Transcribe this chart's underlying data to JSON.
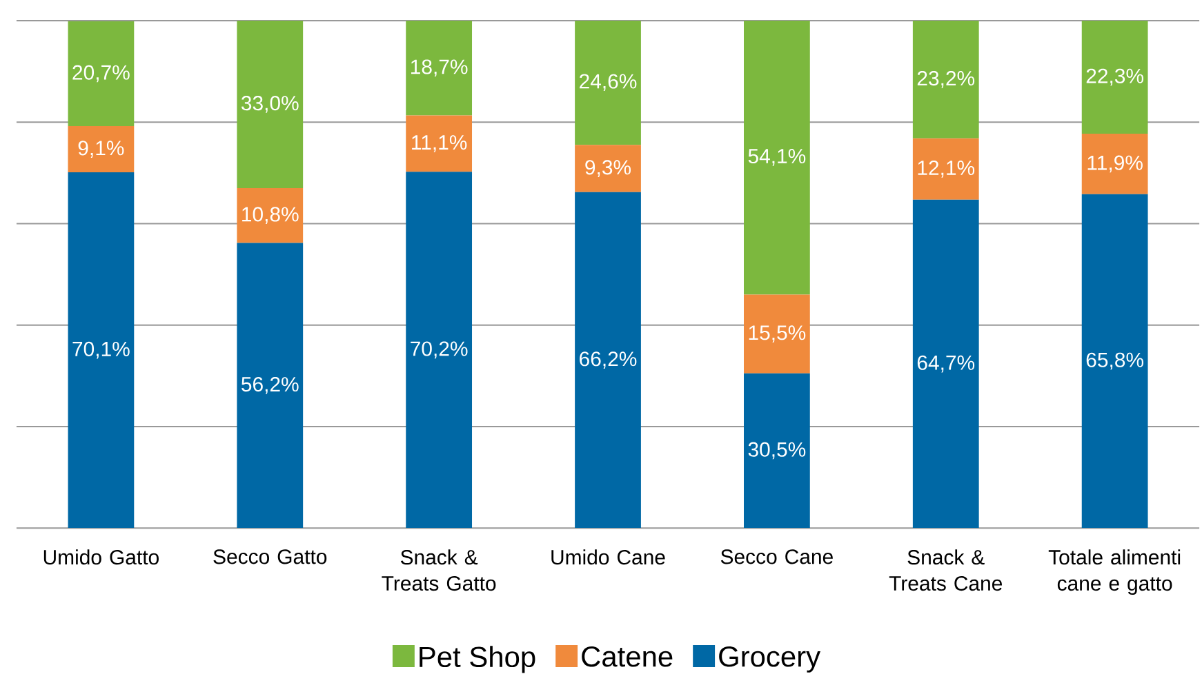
{
  "chart_data": {
    "type": "bar",
    "stacked": true,
    "categories": [
      "Umido Gatto",
      "Secco Gatto",
      "Snack & Treats Gatto",
      "Umido Cane",
      "Secco Cane",
      "Snack & Treats Cane",
      "Totale alimenti cane e gatto"
    ],
    "series": [
      {
        "name": "Grocery",
        "color": "#0068a5",
        "values": [
          70.1,
          56.2,
          70.2,
          66.2,
          30.5,
          64.7,
          65.8
        ],
        "value_labels": [
          "70,1%",
          "56,2%",
          "70,2%",
          "66,2%",
          "30,5%",
          "64,7%",
          "65,8%"
        ]
      },
      {
        "name": "Catene",
        "color": "#f08a3c",
        "values": [
          9.1,
          10.8,
          11.1,
          9.3,
          15.5,
          12.1,
          11.9
        ],
        "value_labels": [
          "9,1%",
          "10,8%",
          "11,1%",
          "9,3%",
          "15,5%",
          "12,1%",
          "11,9%"
        ]
      },
      {
        "name": "Pet Shop",
        "color": "#7cb83e",
        "values": [
          20.7,
          33.0,
          18.7,
          24.6,
          54.1,
          23.2,
          22.3
        ],
        "value_labels": [
          "20,7%",
          "33,0%",
          "18,7%",
          "24,6%",
          "54,1%",
          "23,2%",
          "22,3%"
        ]
      }
    ],
    "ylim": [
      0,
      100
    ],
    "yticks": [
      {
        "value": 0,
        "label": null
      },
      {
        "value": 20,
        "label": null
      },
      {
        "value": 40,
        "label": null
      },
      {
        "value": 60,
        "label": null
      },
      {
        "value": 80,
        "label": null
      },
      {
        "value": 100,
        "label": null
      }
    ],
    "grid": "y",
    "legend": "bottom"
  }
}
